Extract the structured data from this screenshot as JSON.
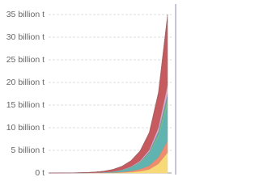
{
  "chart_data": {
    "type": "stacked-area",
    "categories": [
      null,
      null,
      null,
      null,
      null,
      null,
      null,
      null,
      null,
      null,
      null,
      null,
      null,
      null
    ],
    "series": [
      {
        "color": "#f8d978",
        "values": [
          1000000.0,
          2000000.0,
          2000000.0,
          3000000.0,
          6000000.0,
          10000000.0,
          20000000.0,
          50000000.0,
          100000000.0,
          200000000.0,
          400000000.0,
          800000000.0,
          2000000000.0,
          4500000000.0
        ]
      },
      {
        "color": "#ef8c6e",
        "values": [
          1000000.0,
          2000000.0,
          3000000.0,
          4000000.0,
          10000000.0,
          15000000.0,
          30000000.0,
          60000000.0,
          120000000.0,
          250000000.0,
          450000000.0,
          800000000.0,
          1400000000.0,
          2500000000.0
        ]
      },
      {
        "color": "#5fb3b0",
        "values": [
          0,
          0,
          5000000.0,
          10000000.0,
          20000000.0,
          40000000.0,
          80000000.0,
          170000000.0,
          350000000.0,
          700000000.0,
          1300000000.0,
          2500000000.0,
          4500000000.0,
          8000000000.0
        ]
      },
      {
        "color": "#7fba7a",
        "values": [
          0,
          0,
          0,
          0,
          2000000.0,
          4000000.0,
          10000000.0,
          20000000.0,
          50000000.0,
          100000000.0,
          200000000.0,
          300000000.0,
          700000000.0,
          1500000000.0
        ]
      },
      {
        "color": "#6b8ccc",
        "values": [
          0,
          0,
          0,
          0,
          1000000.0,
          3000000.0,
          10000000.0,
          20000000.0,
          40000000.0,
          80000000.0,
          150000000.0,
          300000000.0,
          600000000.0,
          1000000000.0
        ]
      },
      {
        "color": "#e6a3b6",
        "values": [
          0,
          0,
          0,
          0,
          1000000.0,
          3000000.0,
          10000000.0,
          20000000.0,
          50000000.0,
          100000000.0,
          200000000.0,
          400000000.0,
          900000000.0,
          2000000000.0
        ]
      },
      {
        "color": "#c65a5e",
        "values": [
          8000000.0,
          15000000.0,
          20000000.0,
          35000000.0,
          60000000.0,
          120000000.0,
          220000000.0,
          400000000.0,
          700000000.0,
          1200000000.0,
          2000000000.0,
          3500000000.0,
          7000000000.0,
          14000000000.0
        ]
      },
      {
        "color": "#8e6b6b",
        "values": [
          0,
          0,
          0,
          0,
          0,
          10000000.0,
          20000000.0,
          40000000.0,
          70000000.0,
          100000000.0,
          200000000.0,
          350000000.0,
          700000000.0,
          1500000000.0
        ]
      }
    ],
    "ylim": [
      0,
      35000000000.0
    ],
    "yticks": [
      {
        "value": 0,
        "label": "0 t"
      },
      {
        "value": 5000000000.0,
        "label": "5 billion t"
      },
      {
        "value": 10000000000.0,
        "label": "10 billion t"
      },
      {
        "value": 15000000000.0,
        "label": "15 billion t"
      },
      {
        "value": 20000000000.0,
        "label": "20 billion t"
      },
      {
        "value": 25000000000.0,
        "label": "25 billion t"
      },
      {
        "value": 30000000000.0,
        "label": "30 billion t"
      },
      {
        "value": 35000000000.0,
        "label": "35 billion t"
      }
    ],
    "grid": true
  }
}
